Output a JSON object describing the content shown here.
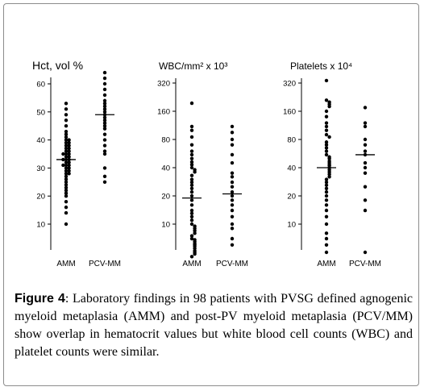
{
  "figure": {
    "label": "Figure 4",
    "caption": ": Laboratory findings in 98 patients with PVSG defined agnogenic myeloid metaplasia (AMM) and post-PV myeloid metaplasia (PCV/MM) show overlap in hematocrit values but white blood cell counts (WBC) and platelet counts were similar."
  },
  "chart_data": [
    {
      "type": "scatter",
      "title": "Hct, vol %",
      "scale": "linear",
      "ylim": [
        5,
        65
      ],
      "yticks": [
        10,
        20,
        30,
        40,
        50,
        60
      ],
      "ytick_labels": [
        "10",
        "20",
        "30",
        "40",
        "50",
        "60"
      ],
      "categories": [
        "AMM",
        "PCV-MM"
      ],
      "series": [
        {
          "category": "AMM",
          "median": 33,
          "values": [
            53,
            51,
            49,
            47,
            45,
            43,
            42,
            41,
            40,
            40,
            39,
            39,
            38,
            38,
            37,
            37,
            36,
            36,
            35,
            35,
            35,
            34,
            34,
            33,
            33,
            33,
            32,
            32,
            31,
            31,
            31,
            30,
            30,
            29,
            29,
            28,
            28,
            27,
            26,
            25,
            24,
            23,
            22,
            21,
            20,
            18,
            16,
            14,
            10
          ]
        },
        {
          "category": "PCV-MM",
          "median": 49,
          "values": [
            64,
            62,
            60,
            58,
            56,
            54,
            53,
            52,
            51,
            50,
            49,
            48,
            47,
            46,
            45,
            44,
            42,
            40,
            38,
            36,
            35,
            30,
            27,
            25
          ]
        }
      ]
    },
    {
      "type": "scatter",
      "title": "WBC/mm² x 10³",
      "scale": "log",
      "ylim": [
        4,
        360
      ],
      "yticks": [
        10,
        20,
        40,
        80,
        160,
        320
      ],
      "ytick_labels": [
        "10",
        "20",
        "40",
        "80",
        "160",
        "320"
      ],
      "categories": [
        "AMM",
        "PCV-MM"
      ],
      "series": [
        {
          "category": "AMM",
          "median": 19,
          "values": [
            195,
            110,
            100,
            85,
            70,
            60,
            55,
            50,
            46,
            43,
            40,
            38,
            36,
            33,
            30,
            28,
            26,
            24,
            22,
            20,
            18,
            16,
            14,
            13,
            12,
            11,
            10,
            9.5,
            9,
            8.5,
            8,
            7.5,
            7,
            6.8,
            6.5,
            6.2,
            6,
            5.8,
            5.5,
            5.2,
            5,
            4.8,
            4.5
          ]
        },
        {
          "category": "PCV-MM",
          "median": 21,
          "values": [
            110,
            95,
            80,
            70,
            55,
            45,
            35,
            32,
            28,
            25,
            22,
            20,
            18,
            16,
            14,
            12,
            10,
            9,
            7,
            6
          ]
        }
      ]
    },
    {
      "type": "scatter",
      "title": "Platelets x 10⁴",
      "scale": "log",
      "ylim": [
        4,
        360
      ],
      "yticks": [
        10,
        20,
        40,
        80,
        160,
        320
      ],
      "ytick_labels": [
        "10",
        "20",
        "40",
        "80",
        "160",
        "320"
      ],
      "categories": [
        "AMM",
        "PCV-MM"
      ],
      "series": [
        {
          "category": "AMM",
          "median": 40,
          "values": [
            340,
            210,
            200,
            190,
            180,
            160,
            140,
            120,
            110,
            100,
            90,
            85,
            75,
            70,
            65,
            60,
            55,
            52,
            50,
            47,
            45,
            43,
            42,
            40,
            38,
            36,
            34,
            32,
            30,
            28,
            26,
            24,
            22,
            20,
            18,
            16,
            14,
            12,
            10,
            8,
            7,
            6,
            5
          ]
        },
        {
          "category": "PCV-MM",
          "median": 55,
          "values": [
            175,
            120,
            110,
            80,
            70,
            60,
            55,
            45,
            40,
            35,
            25,
            18,
            14,
            5
          ]
        }
      ]
    }
  ]
}
